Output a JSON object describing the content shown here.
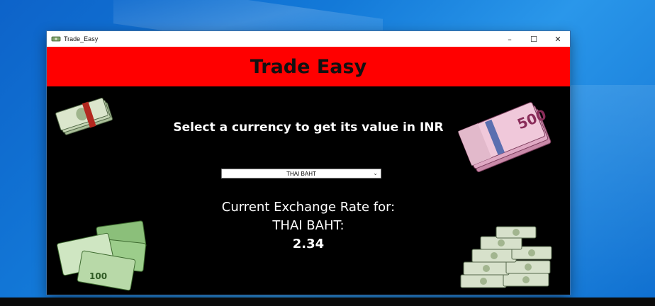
{
  "window": {
    "title": "Trade_Easy",
    "controls": {
      "minimize": "–",
      "maximize": "☐",
      "close": "✕"
    }
  },
  "header": {
    "title": "Trade Easy"
  },
  "main": {
    "prompt": "Select a currency to get its value in INR",
    "currency_select": {
      "selected": "THAI BAHT"
    },
    "rate_label": "Current Exchange Rate for:",
    "currency_name": "THAI BAHT:",
    "rate_value": "2.34"
  },
  "images": {
    "banknote_500": "500",
    "banknote_100": "100"
  },
  "colors": {
    "header_bg": "#ff0000",
    "content_bg": "#000000",
    "text": "#ffffff"
  }
}
